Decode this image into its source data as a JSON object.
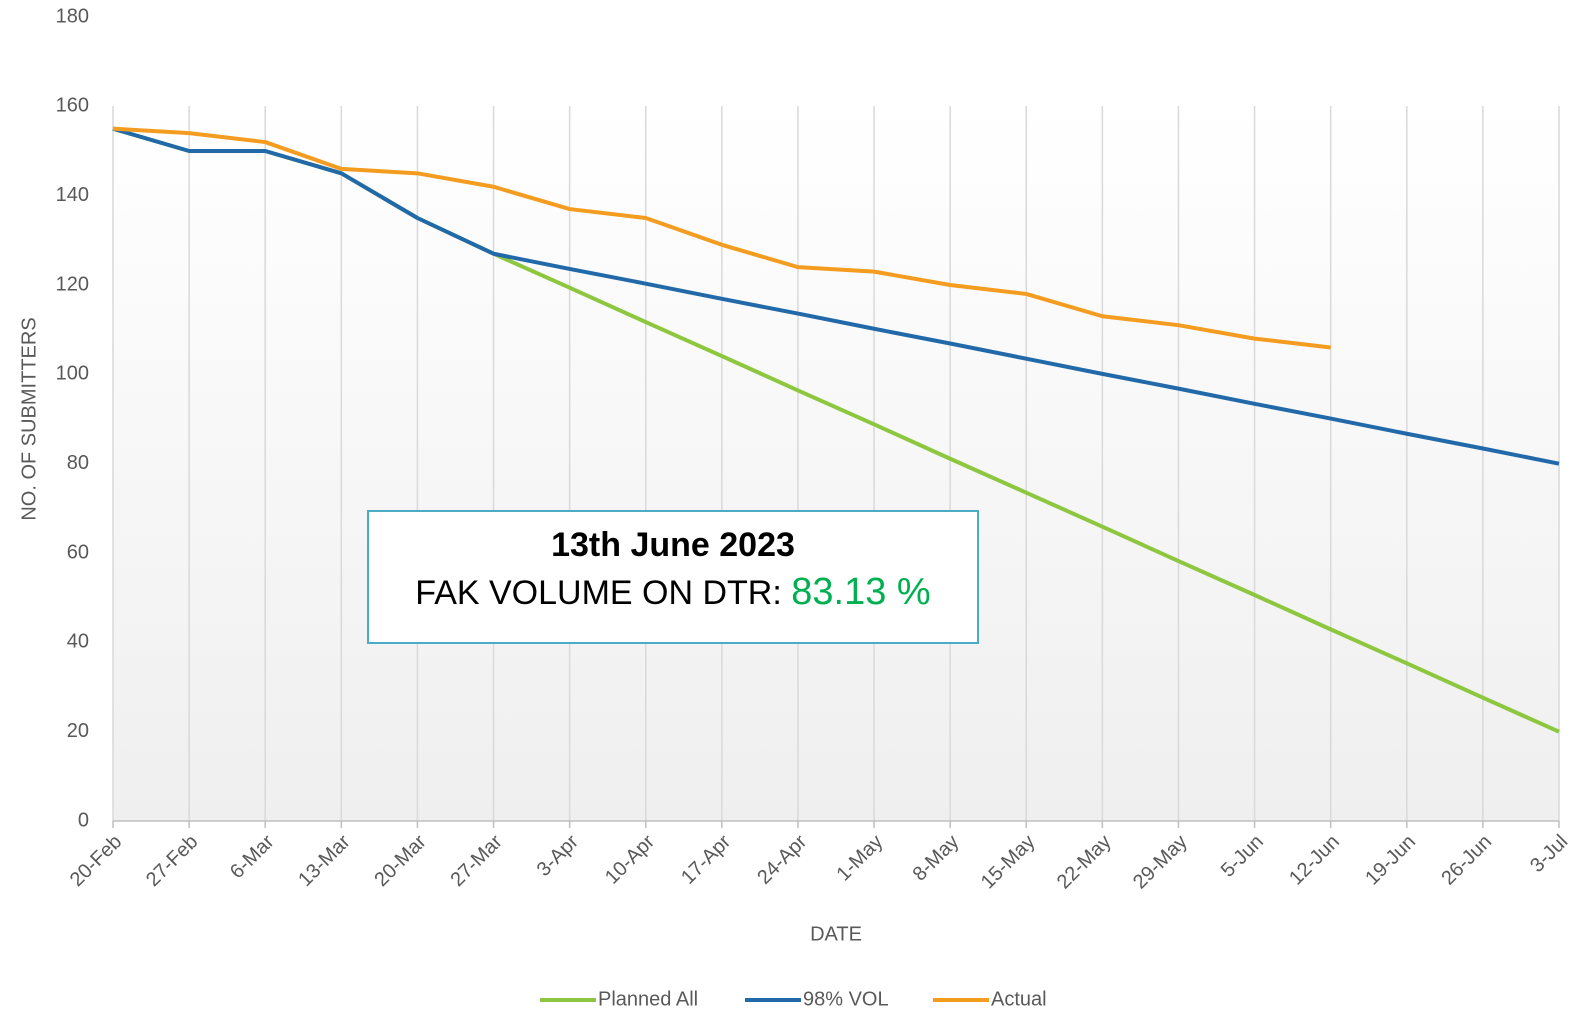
{
  "chart_data": {
    "type": "line",
    "x_label": "DATE",
    "y_label": "NO. OF SUBMITTERS",
    "annotation": {
      "title": "13th June 2023",
      "label": "FAK VOLUME ON DTR:",
      "value": "83.13 %"
    },
    "categories": [
      "20-Feb",
      "27-Feb",
      "6-Mar",
      "13-Mar",
      "20-Mar",
      "27-Mar",
      "3-Apr",
      "10-Apr",
      "17-Apr",
      "24-Apr",
      "1-May",
      "8-May",
      "15-May",
      "22-May",
      "29-May",
      "5-Jun",
      "12-Jun",
      "19-Jun",
      "26-Jun",
      "3-Jul"
    ],
    "series": [
      {
        "name": "Planned All",
        "color": "#8dc63f",
        "values": [
          155,
          150,
          150,
          145,
          135,
          127,
          119.4,
          111.7,
          104.1,
          96.4,
          88.8,
          81.1,
          73.5,
          65.9,
          58.2,
          50.6,
          42.9,
          35.3,
          27.6,
          20
        ]
      },
      {
        "name": "98% VOL",
        "color": "#2169a8",
        "values": [
          155,
          150,
          150,
          145,
          135,
          127,
          123.6,
          120.3,
          116.9,
          113.6,
          110.2,
          106.9,
          103.5,
          100.1,
          96.8,
          93.4,
          90.1,
          86.7,
          83.4,
          80
        ]
      },
      {
        "name": "Actual",
        "color": "#f39c1f",
        "values": [
          155,
          154,
          152,
          146,
          145,
          142,
          137,
          135,
          129,
          124,
          123,
          120,
          118,
          113,
          111,
          108,
          106,
          null,
          null,
          null
        ]
      }
    ],
    "ylim": [
      0,
      180
    ],
    "yticks": [
      0,
      20,
      40,
      60,
      80,
      100,
      120,
      140,
      160,
      180
    ],
    "grid": "vertical",
    "legend": "bottom"
  }
}
